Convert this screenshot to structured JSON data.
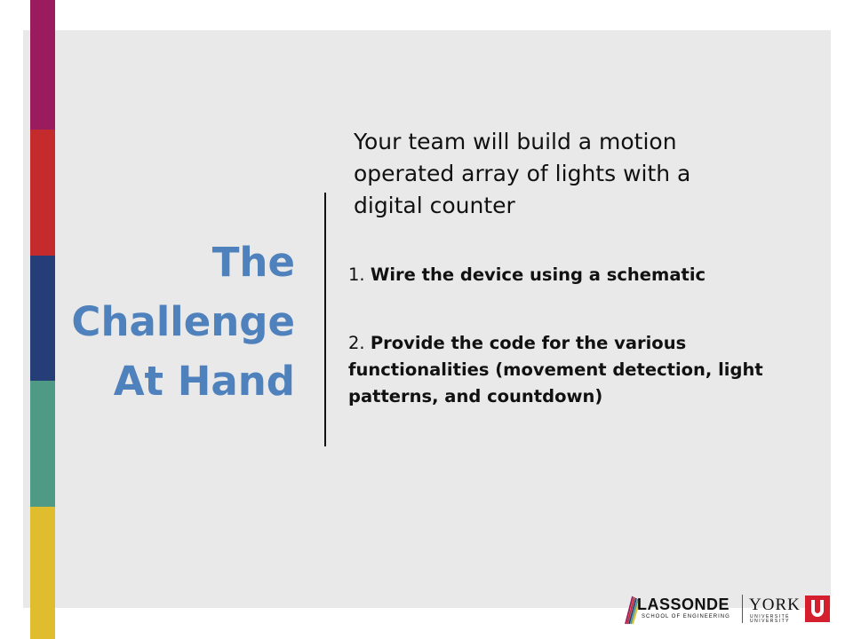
{
  "slide": {
    "title_lines": [
      "The",
      "Challenge",
      "At Hand"
    ],
    "intro": "Your team will build a motion operated array of lights with a digital counter",
    "items": [
      {
        "number": "1.",
        "text": "Wire the device using a schematic"
      },
      {
        "number": "2.",
        "text": "Provide the code for the various functionalities (movement detection, light patterns, and countdown)"
      }
    ]
  },
  "logo": {
    "lassonde_name": "LASSONDE",
    "lassonde_sub": "SCHOOL OF ENGINEERING",
    "york_name": "YORK",
    "york_sub_1": "UNIVERSITÉ",
    "york_sub_2": "UNIVERSITY"
  },
  "colors": {
    "title": "#4f81bd",
    "panel_background": "#e9e9e9",
    "stripe_colors": [
      "#9b1b5f",
      "#c32b2d",
      "#263e78",
      "#4e9a84",
      "#dfbd2e"
    ],
    "york_red": "#d41f2f"
  }
}
